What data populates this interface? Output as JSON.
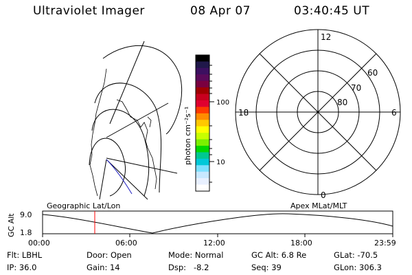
{
  "header": {
    "title": "Ultraviolet Imager",
    "date": "08 Apr 07",
    "time": "03:40:45 UT"
  },
  "colorbar": {
    "unit_label": "photon cm⁻²s⁻¹",
    "tick_labels": [
      "100",
      "10"
    ],
    "colors": [
      "#000000",
      "#20184a",
      "#3c1060",
      "#5a0a5a",
      "#7a0040",
      "#a00000",
      "#c8001e",
      "#e00030",
      "#ff3a00",
      "#ff8c00",
      "#ffc800",
      "#ffff00",
      "#c8ff00",
      "#7cf000",
      "#00d800",
      "#00c890",
      "#00c8d8",
      "#7ce0ff",
      "#c8e8ff",
      "#e8f0ff",
      "#ffffff"
    ]
  },
  "polar": {
    "mlt_labels": {
      "top": "12",
      "left": "18",
      "right": "6",
      "bottom": "0"
    },
    "lat_labels": [
      "60",
      "70",
      "80"
    ]
  },
  "timeline": {
    "left_label": "Geographic Lat/Lon",
    "right_label": "Apex MLat/MLT",
    "y_axis_label": "GC Alt",
    "y_ticks": [
      "9.0",
      "1.8"
    ],
    "x_ticks": [
      "00:00",
      "06:00",
      "12:00",
      "18:00",
      "23:59"
    ],
    "marker_color": "#ff0000"
  },
  "info_rows": [
    [
      {
        "label": "Flt:",
        "value": "LBHL"
      },
      {
        "label": "Door:",
        "value": "Open"
      },
      {
        "label": "Mode:",
        "value": "Normal"
      },
      {
        "label": "GC Alt:",
        "value": "6.8 Re"
      },
      {
        "label": "GLat:",
        "value": "-70.5"
      }
    ],
    [
      {
        "label": "IP:",
        "value": "36.0"
      },
      {
        "label": "Gain:",
        "value": "14"
      },
      {
        "label": "Dsp:",
        "value": "  -8.2"
      },
      {
        "label": "Seq:",
        "value": "39"
      },
      {
        "label": "GLon:",
        "value": "306.3"
      }
    ]
  ]
}
